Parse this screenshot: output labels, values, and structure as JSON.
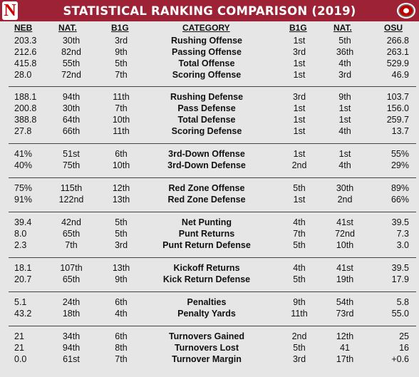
{
  "title": "STATISTICAL RANKING COMPARISON (2019)",
  "logos": {
    "left_letter": "N",
    "left_icon": "nebraska-n-logo",
    "right_icon": "ohio-state-block-o-logo"
  },
  "headers": {
    "neb": "NEB",
    "nat": "NAT.",
    "b1g": "B1G",
    "category": "CATEGORY",
    "b1g2": "B1G",
    "nat2": "NAT.",
    "osu": "OSU"
  },
  "colors": {
    "title_bar": "#9d2235",
    "background": "#e6e6e6",
    "nebraska_red": "#d00000",
    "osu_scarlet": "#bb0000"
  },
  "groups": [
    {
      "rows": [
        {
          "neb": "203.3",
          "nat": "30th",
          "b1g": "3rd",
          "category": "Rushing Offense",
          "b1g2": "1st",
          "nat2": "5th",
          "osu": "266.8"
        },
        {
          "neb": "212.6",
          "nat": "82nd",
          "b1g": "9th",
          "category": "Passing Offense",
          "b1g2": "3rd",
          "nat2": "36th",
          "osu": "263.1"
        },
        {
          "neb": "415.8",
          "nat": "55th",
          "b1g": "5th",
          "category": "Total Offense",
          "b1g2": "1st",
          "nat2": "4th",
          "osu": "529.9"
        },
        {
          "neb": "28.0",
          "nat": "72nd",
          "b1g": "7th",
          "category": "Scoring Offense",
          "b1g2": "1st",
          "nat2": "3rd",
          "osu": "46.9"
        }
      ]
    },
    {
      "rows": [
        {
          "neb": "188.1",
          "nat": "94th",
          "b1g": "11th",
          "category": "Rushing Defense",
          "b1g2": "3rd",
          "nat2": "9th",
          "osu": "103.7"
        },
        {
          "neb": "200.8",
          "nat": "30th",
          "b1g": "7th",
          "category": "Pass Defense",
          "b1g2": "1st",
          "nat2": "1st",
          "osu": "156.0"
        },
        {
          "neb": "388.8",
          "nat": "64th",
          "b1g": "10th",
          "category": "Total Defense",
          "b1g2": "1st",
          "nat2": "1st",
          "osu": "259.7"
        },
        {
          "neb": "27.8",
          "nat": "66th",
          "b1g": "11th",
          "category": "Scoring Defense",
          "b1g2": "1st",
          "nat2": "4th",
          "osu": "13.7"
        }
      ]
    },
    {
      "rows": [
        {
          "neb": "41%",
          "nat": "51st",
          "b1g": "6th",
          "category": "3rd-Down Offense",
          "b1g2": "1st",
          "nat2": "1st",
          "osu": "55%"
        },
        {
          "neb": "40%",
          "nat": "75th",
          "b1g": "10th",
          "category": "3rd-Down Defense",
          "b1g2": "2nd",
          "nat2": "4th",
          "osu": "29%"
        }
      ]
    },
    {
      "rows": [
        {
          "neb": "75%",
          "nat": "115th",
          "b1g": "12th",
          "category": "Red Zone Offense",
          "b1g2": "5th",
          "nat2": "30th",
          "osu": "89%"
        },
        {
          "neb": "91%",
          "nat": "122nd",
          "b1g": "13th",
          "category": "Red Zone Defense",
          "b1g2": "1st",
          "nat2": "2nd",
          "osu": "66%"
        }
      ]
    },
    {
      "rows": [
        {
          "neb": "39.4",
          "nat": "42nd",
          "b1g": "5th",
          "category": "Net Punting",
          "b1g2": "4th",
          "nat2": "41st",
          "osu": "39.5"
        },
        {
          "neb": "8.0",
          "nat": "65th",
          "b1g": "5th",
          "category": "Punt Returns",
          "b1g2": "7th",
          "nat2": "72nd",
          "osu": "7.3"
        },
        {
          "neb": "2.3",
          "nat": "7th",
          "b1g": "3rd",
          "category": "Punt Return Defense",
          "b1g2": "5th",
          "nat2": "10th",
          "osu": "3.0"
        }
      ]
    },
    {
      "rows": [
        {
          "neb": "18.1",
          "nat": "107th",
          "b1g": "13th",
          "category": "Kickoff Returns",
          "b1g2": "4th",
          "nat2": "41st",
          "osu": "39.5"
        },
        {
          "neb": "20.7",
          "nat": "65th",
          "b1g": "9th",
          "category": "Kick Return Defense",
          "b1g2": "5th",
          "nat2": "19th",
          "osu": "17.9"
        }
      ]
    },
    {
      "rows": [
        {
          "neb": "5.1",
          "nat": "24th",
          "b1g": "6th",
          "category": "Penalties",
          "b1g2": "9th",
          "nat2": "54th",
          "osu": "5.8"
        },
        {
          "neb": "43.2",
          "nat": "18th",
          "b1g": "4th",
          "category": "Penalty Yards",
          "b1g2": "11th",
          "nat2": "73rd",
          "osu": "55.0"
        }
      ]
    },
    {
      "rows": [
        {
          "neb": "21",
          "nat": "34th",
          "b1g": "6th",
          "category": "Turnovers Gained",
          "b1g2": "2nd",
          "nat2": "12th",
          "osu": "25"
        },
        {
          "neb": "21",
          "nat": "94th",
          "b1g": "8th",
          "category": "Turnovers Lost",
          "b1g2": "5th",
          "nat2": "41",
          "osu": "16"
        },
        {
          "neb": "0.0",
          "nat": "61st",
          "b1g": "7th",
          "category": "Turnover Margin",
          "b1g2": "3rd",
          "nat2": "17th",
          "osu": "+0.6"
        }
      ]
    }
  ]
}
